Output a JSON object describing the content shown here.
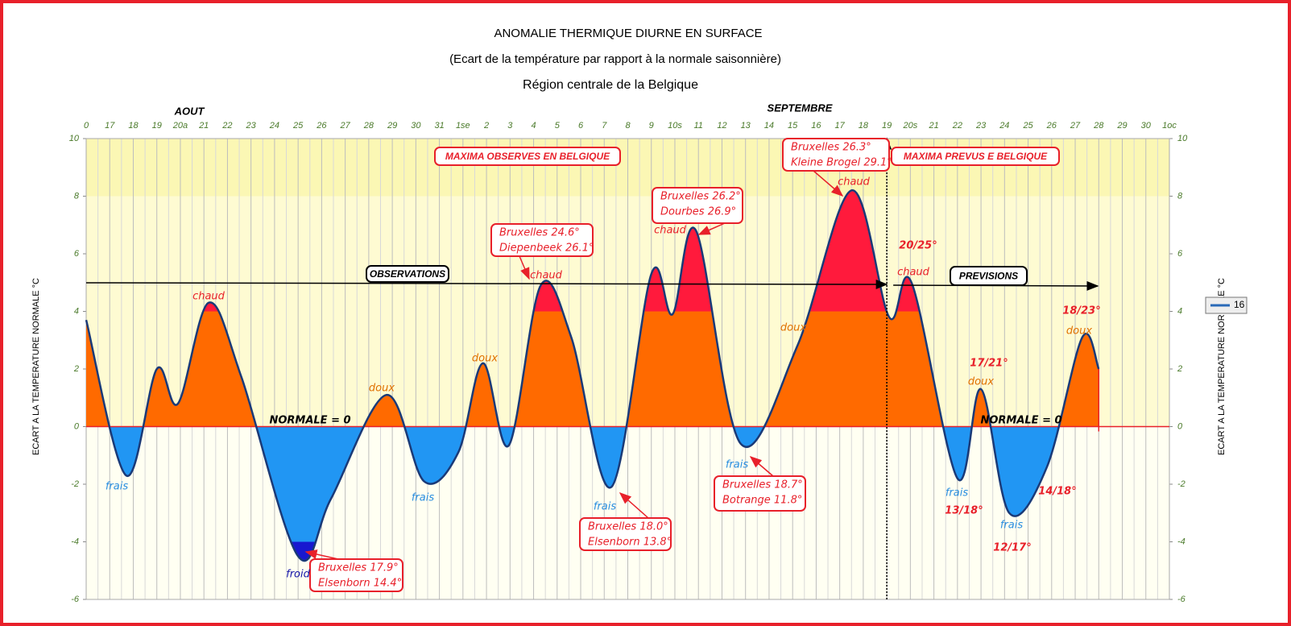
{
  "chart_data": {
    "type": "area",
    "title": "ANOMALIE THERMIQUE DIURNE EN SURFACE",
    "subtitle": "(Ecart de la température par rapport à la normale saisonnière)",
    "subtitle2": "Région centrale de la Belgique",
    "months": [
      "AOUT",
      "SEPTEMBRE"
    ],
    "ylabel": "ECART A LA TEMPERATURE NORMALE  °C",
    "y2label": "ECART A LA TEMPERATURE NORMALE  °C",
    "xlim": [
      0,
      46
    ],
    "xticks": [
      0,
      {
        "value": 1,
        "label": "17"
      },
      {
        "value": 2,
        "label": "18"
      },
      {
        "value": 3,
        "label": "19"
      },
      {
        "value": 4,
        "label": "20a"
      },
      {
        "value": 5,
        "label": "21"
      },
      {
        "value": 6,
        "label": "22"
      },
      {
        "value": 7,
        "label": "23"
      },
      {
        "value": 8,
        "label": "24"
      },
      {
        "value": 9,
        "label": "25"
      },
      {
        "value": 10,
        "label": "26"
      },
      {
        "value": 11,
        "label": "27"
      },
      {
        "value": 12,
        "label": "28"
      },
      {
        "value": 13,
        "label": "29"
      },
      {
        "value": 14,
        "label": "30"
      },
      {
        "value": 15,
        "label": "31"
      },
      {
        "value": 16,
        "label": "1se"
      },
      {
        "value": 17,
        "label": "2"
      },
      {
        "value": 18,
        "label": "3"
      },
      {
        "value": 19,
        "label": "4"
      },
      {
        "value": 20,
        "label": "5"
      },
      {
        "value": 21,
        "label": "6"
      },
      {
        "value": 22,
        "label": "7"
      },
      {
        "value": 23,
        "label": "8"
      },
      {
        "value": 24,
        "label": "9"
      },
      {
        "value": 25,
        "label": "10s"
      },
      {
        "value": 26,
        "label": "11"
      },
      {
        "value": 27,
        "label": "12"
      },
      {
        "value": 28,
        "label": "13"
      },
      {
        "value": 29,
        "label": "14"
      },
      {
        "value": 30,
        "label": "15"
      },
      {
        "value": 31,
        "label": "16"
      },
      {
        "value": 32,
        "label": "17"
      },
      {
        "value": 33,
        "label": "18"
      },
      {
        "value": 34,
        "label": "19"
      },
      {
        "value": 35,
        "label": "20s"
      },
      {
        "value": 36,
        "label": "21"
      },
      {
        "value": 37,
        "label": "22"
      },
      {
        "value": 38,
        "label": "23"
      },
      {
        "value": 39,
        "label": "24"
      },
      {
        "value": 40,
        "label": "25"
      },
      {
        "value": 41,
        "label": "26"
      },
      {
        "value": 42,
        "label": "27"
      },
      {
        "value": 43,
        "label": "28"
      },
      {
        "value": 44,
        "label": "29"
      },
      {
        "value": 45,
        "label": "30"
      },
      {
        "value": 46,
        "label": "1oc"
      }
    ],
    "ylim": [
      -6,
      10
    ],
    "yticks": [
      -6,
      -4,
      -2,
      0,
      2,
      4,
      6,
      8,
      10
    ],
    "y2lim": [
      -6,
      10
    ],
    "y2ticks": [
      -6,
      -4,
      -2,
      0,
      2,
      4,
      6,
      8,
      10
    ],
    "series": [
      {
        "name": "16",
        "color": "#1a3a78",
        "x": [
          0,
          1.7,
          3.0,
          3.9,
          5.2,
          6.6,
          9.0,
          10.4,
          12.75,
          14.35,
          15.8,
          16.85,
          17.95,
          19.3,
          20.6,
          22.3,
          24.0,
          24.9,
          25.9,
          27.8,
          30.2,
          32.5,
          34.1,
          35.05,
          37.0,
          38.0,
          39.2,
          40.8,
          42.3,
          43.0
        ],
        "values": [
          3.7,
          -1.7,
          2.0,
          0.8,
          4.3,
          1.7,
          -4.5,
          -2.5,
          1.1,
          -1.9,
          -0.9,
          2.2,
          -0.65,
          4.9,
          3.1,
          -2.1,
          5.3,
          3.9,
          6.8,
          -0.6,
          2.8,
          8.2,
          3.8,
          5.0,
          -1.8,
          1.3,
          -3.0,
          -1.4,
          3.1,
          2.0
        ]
      }
    ],
    "fill_colors": {
      "warm": "#ff6a00",
      "hot": "#ff1a3c",
      "cool": "#2196f3",
      "cold": "#1818d0"
    },
    "hot_above": 4,
    "cold_below": -4,
    "background_bands": [
      {
        "from": 8,
        "to": 10,
        "color": "#fbf7b4"
      },
      {
        "from": 0,
        "to": 8,
        "color": "#fefbd2"
      },
      {
        "from": -6,
        "to": 0,
        "color": "#fffff2"
      }
    ],
    "forecast_start_x": 34,
    "boxes": [
      "MAXIMA OBSERVES EN BELGIQUE",
      "MAXIMA PREVUS E BELGIQUE",
      "OBSERVATIONS",
      "PREVISIONS"
    ],
    "callouts": [
      [
        "Bruxelles 24.6°",
        "Diepenbeek 26.1°"
      ],
      [
        "Bruxelles 26.2°",
        "Dourbes 26.9°"
      ],
      [
        "Bruxelles 26.3°",
        "Kleine Brogel 29.1°"
      ],
      [
        "Bruxelles 17.9°",
        "Elsenborn 14.4°"
      ],
      [
        "Bruxelles 18.0°",
        "Elsenborn 13.8°"
      ],
      [
        "Bruxelles 18.7°",
        "Botrange 11.8°"
      ]
    ],
    "labels": [
      {
        "text": "chaud",
        "kind": "hot"
      },
      {
        "text": "chaud",
        "kind": "hot"
      },
      {
        "text": "chaud",
        "kind": "hot"
      },
      {
        "text": "chaud",
        "kind": "hot"
      },
      {
        "text": "chaud",
        "kind": "hot"
      },
      {
        "text": "doux",
        "kind": "mild"
      },
      {
        "text": "doux",
        "kind": "mild"
      },
      {
        "text": "doux",
        "kind": "mild"
      },
      {
        "text": "doux",
        "kind": "mild"
      },
      {
        "text": "doux",
        "kind": "mild"
      },
      {
        "text": "frais",
        "kind": "cool"
      },
      {
        "text": "frais",
        "kind": "cool"
      },
      {
        "text": "frais",
        "kind": "cool"
      },
      {
        "text": "frais",
        "kind": "cool"
      },
      {
        "text": "frais",
        "kind": "cool"
      },
      {
        "text": "frais",
        "kind": "cool"
      },
      {
        "text": "froid",
        "kind": "cold"
      },
      {
        "text": "NORMALE = 0",
        "kind": "normal"
      },
      {
        "text": "NORMALE = 0",
        "kind": "normal"
      },
      {
        "text": "20/25°",
        "kind": "fc"
      },
      {
        "text": "17/21°",
        "kind": "fc"
      },
      {
        "text": "18/23°",
        "kind": "fc"
      },
      {
        "text": "13/18°",
        "kind": "fc"
      },
      {
        "text": "14/18°",
        "kind": "fc"
      },
      {
        "text": "12/17°",
        "kind": "fc"
      }
    ]
  }
}
